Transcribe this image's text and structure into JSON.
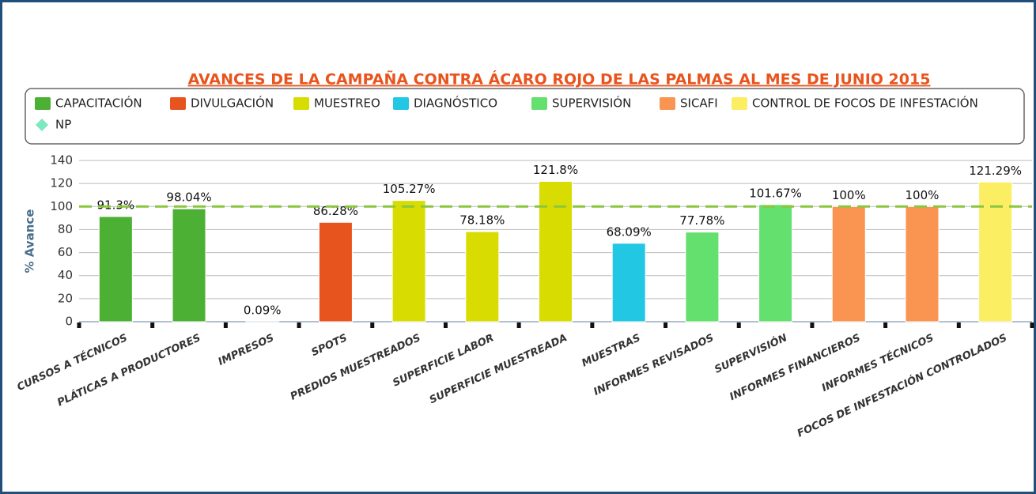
{
  "chart_data": {
    "type": "bar",
    "title": "AVANCES DE LA CAMPAÑA CONTRA ÁCARO ROJO DE LAS PALMAS AL MES DE JUNIO 2015",
    "y_label": "% Avance",
    "categories": [
      "CURSOS A TÉCNICOS",
      "PLÁTICAS A PRODUCTORES",
      "IMPRESOS",
      "SPOTS",
      "PREDIOS MUESTREADOS",
      "SUPERFICIE LABOR",
      "SUPERFICIE MUESTREADA",
      "MUESTRAS",
      "INFORMES REVISADOS",
      "SUPERVISIÓN",
      "INFORMES FINANCIEROS",
      "INFORMES TÉCNICOS",
      "FOCOS DE INFESTACIÓN CONTROLADOS"
    ],
    "series": [
      {
        "name": "CAPACITACIÓN",
        "color": "#4cb035",
        "values": [
          91.3,
          98.04,
          null,
          null,
          null,
          null,
          null,
          null,
          null,
          null,
          null,
          null,
          null
        ],
        "value_labels": [
          "91.3%",
          "98.04%",
          null,
          null,
          null,
          null,
          null,
          null,
          null,
          null,
          null,
          null,
          null
        ]
      },
      {
        "name": "DIVULGACIÓN",
        "color": "#e8541e",
        "values": [
          null,
          null,
          0.09,
          86.28,
          null,
          null,
          null,
          null,
          null,
          null,
          null,
          null,
          null
        ],
        "value_labels": [
          null,
          null,
          "0.09%",
          "86.28%",
          null,
          null,
          null,
          null,
          null,
          null,
          null,
          null,
          null
        ]
      },
      {
        "name": "MUESTREO",
        "color": "#d9dc00",
        "values": [
          null,
          null,
          null,
          null,
          105.27,
          78.18,
          121.8,
          null,
          null,
          null,
          null,
          null,
          null
        ],
        "value_labels": [
          null,
          null,
          null,
          null,
          "105.27%",
          "78.18%",
          "121.8%",
          null,
          null,
          null,
          null,
          null,
          null
        ]
      },
      {
        "name": "DIAGNÓSTICO",
        "color": "#22c7e3",
        "values": [
          null,
          null,
          null,
          null,
          null,
          null,
          null,
          68.09,
          null,
          null,
          null,
          null,
          null
        ],
        "value_labels": [
          null,
          null,
          null,
          null,
          null,
          null,
          null,
          "68.09%",
          null,
          null,
          null,
          null,
          null
        ]
      },
      {
        "name": "SUPERVISIÓN",
        "color": "#63e06e",
        "values": [
          null,
          null,
          null,
          null,
          null,
          null,
          null,
          null,
          77.78,
          101.67,
          null,
          null,
          null
        ],
        "value_labels": [
          null,
          null,
          null,
          null,
          null,
          null,
          null,
          null,
          "77.78%",
          "101.67%",
          null,
          null,
          null
        ]
      },
      {
        "name": "SICAFI",
        "color": "#f99551",
        "values": [
          null,
          null,
          null,
          null,
          null,
          null,
          null,
          null,
          null,
          null,
          100,
          100,
          null
        ],
        "value_labels": [
          null,
          null,
          null,
          null,
          null,
          null,
          null,
          null,
          null,
          null,
          "100%",
          "100%",
          null
        ]
      },
      {
        "name": "CONTROL DE FOCOS DE INFESTACIÓN",
        "color": "#fbee62",
        "values": [
          null,
          null,
          null,
          null,
          null,
          null,
          null,
          null,
          null,
          null,
          null,
          null,
          121.29
        ],
        "value_labels": [
          null,
          null,
          null,
          null,
          null,
          null,
          null,
          null,
          null,
          null,
          null,
          null,
          "121.29%"
        ]
      },
      {
        "name": "NP",
        "type": "line",
        "color": "#8cc63f",
        "values": [
          100,
          100,
          100,
          100,
          100,
          100,
          100,
          100,
          100,
          100,
          100,
          100,
          100
        ]
      }
    ],
    "ylim": [
      0,
      140
    ],
    "yticks": [
      0,
      20,
      40,
      60,
      80,
      100,
      120,
      140
    ],
    "grid": true
  }
}
